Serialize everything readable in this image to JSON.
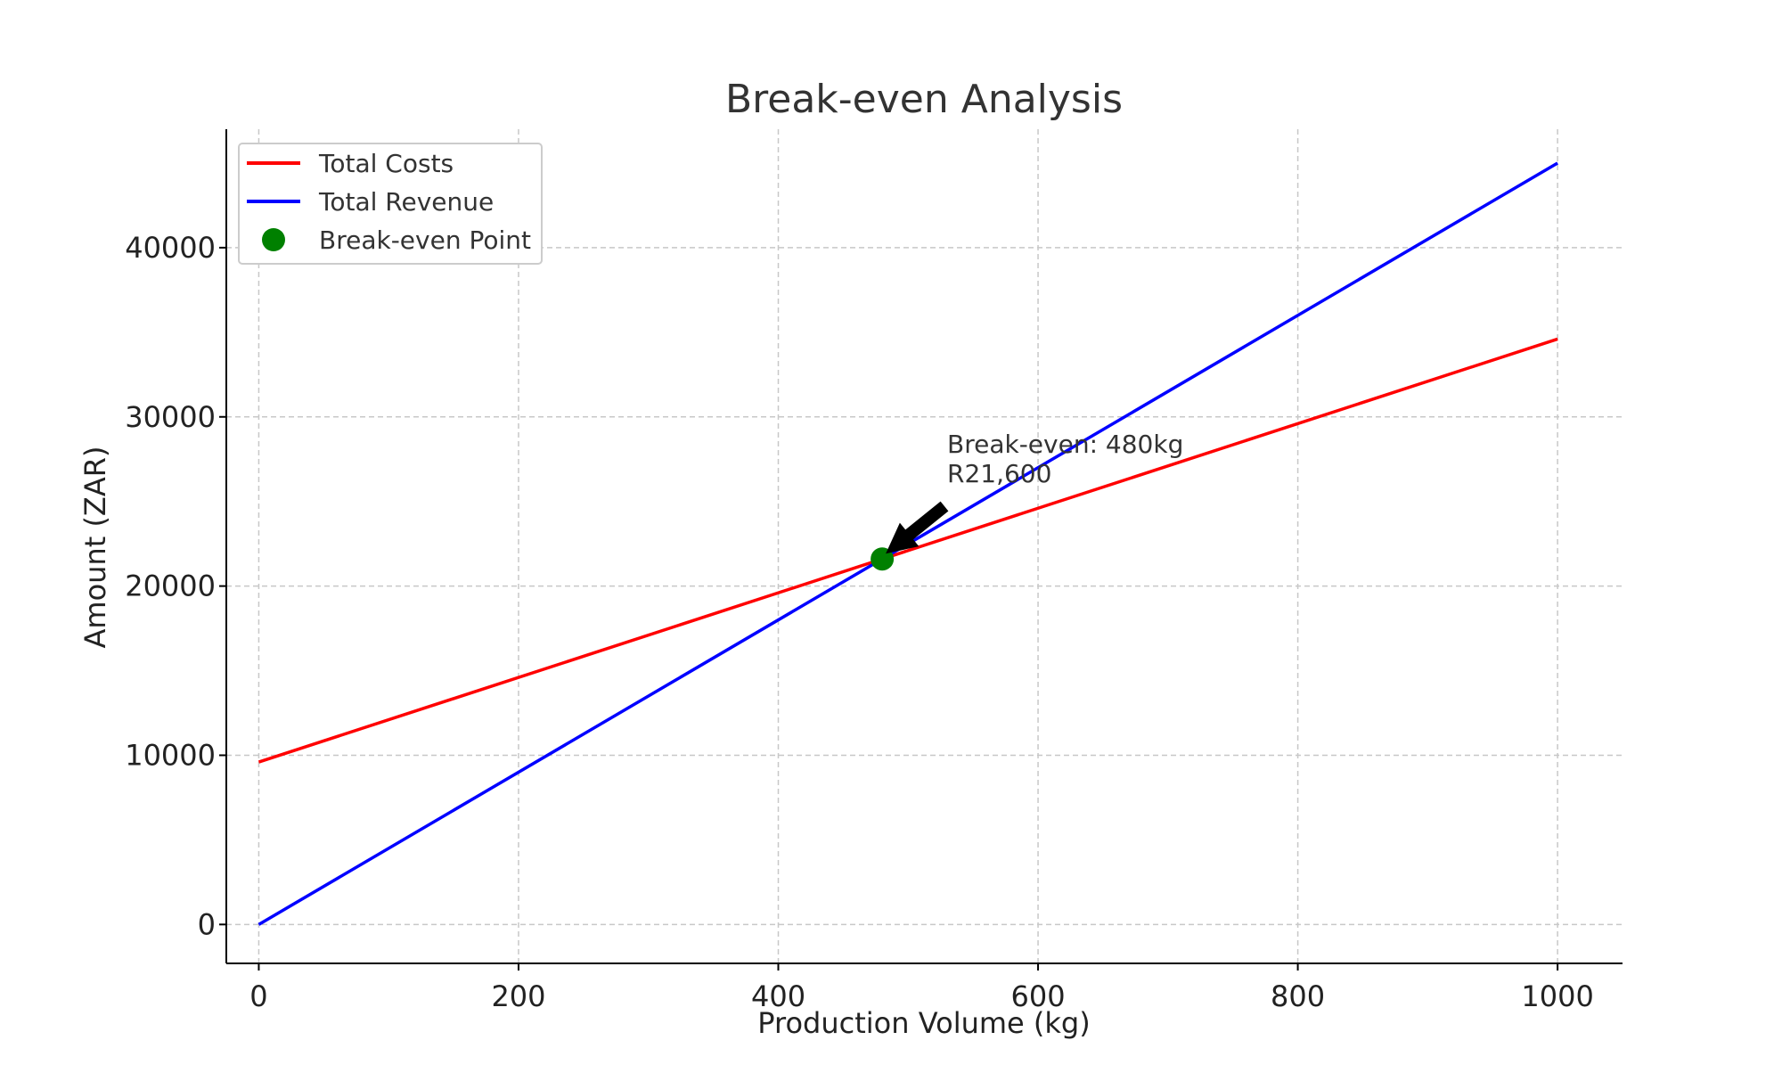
{
  "chart_data": {
    "type": "line",
    "title": "Break-even Analysis",
    "xlabel": "Production Volume (kg)",
    "ylabel": "Amount (ZAR)",
    "xlim": [
      -25,
      1050
    ],
    "ylim": [
      -2300,
      47000
    ],
    "xticks": [
      0,
      200,
      400,
      600,
      800,
      1000
    ],
    "yticks": [
      0,
      10000,
      20000,
      30000,
      40000
    ],
    "grid": true,
    "legend_position": "upper-left",
    "series": [
      {
        "name": "Total Costs",
        "color": "#ff0000",
        "x": [
          0,
          1000
        ],
        "y": [
          9600,
          34600
        ]
      },
      {
        "name": "Total Revenue",
        "color": "#0000ff",
        "x": [
          0,
          1000
        ],
        "y": [
          0,
          45000
        ]
      }
    ],
    "points": [
      {
        "name": "Break-even Point",
        "color": "#008000",
        "x": 480,
        "y": 21600
      }
    ],
    "annotation": {
      "lines": [
        "Break-even: 480kg",
        "R21,600"
      ],
      "target_x": 480,
      "target_y": 21600,
      "text_x": 530,
      "text_y": 26300
    }
  }
}
